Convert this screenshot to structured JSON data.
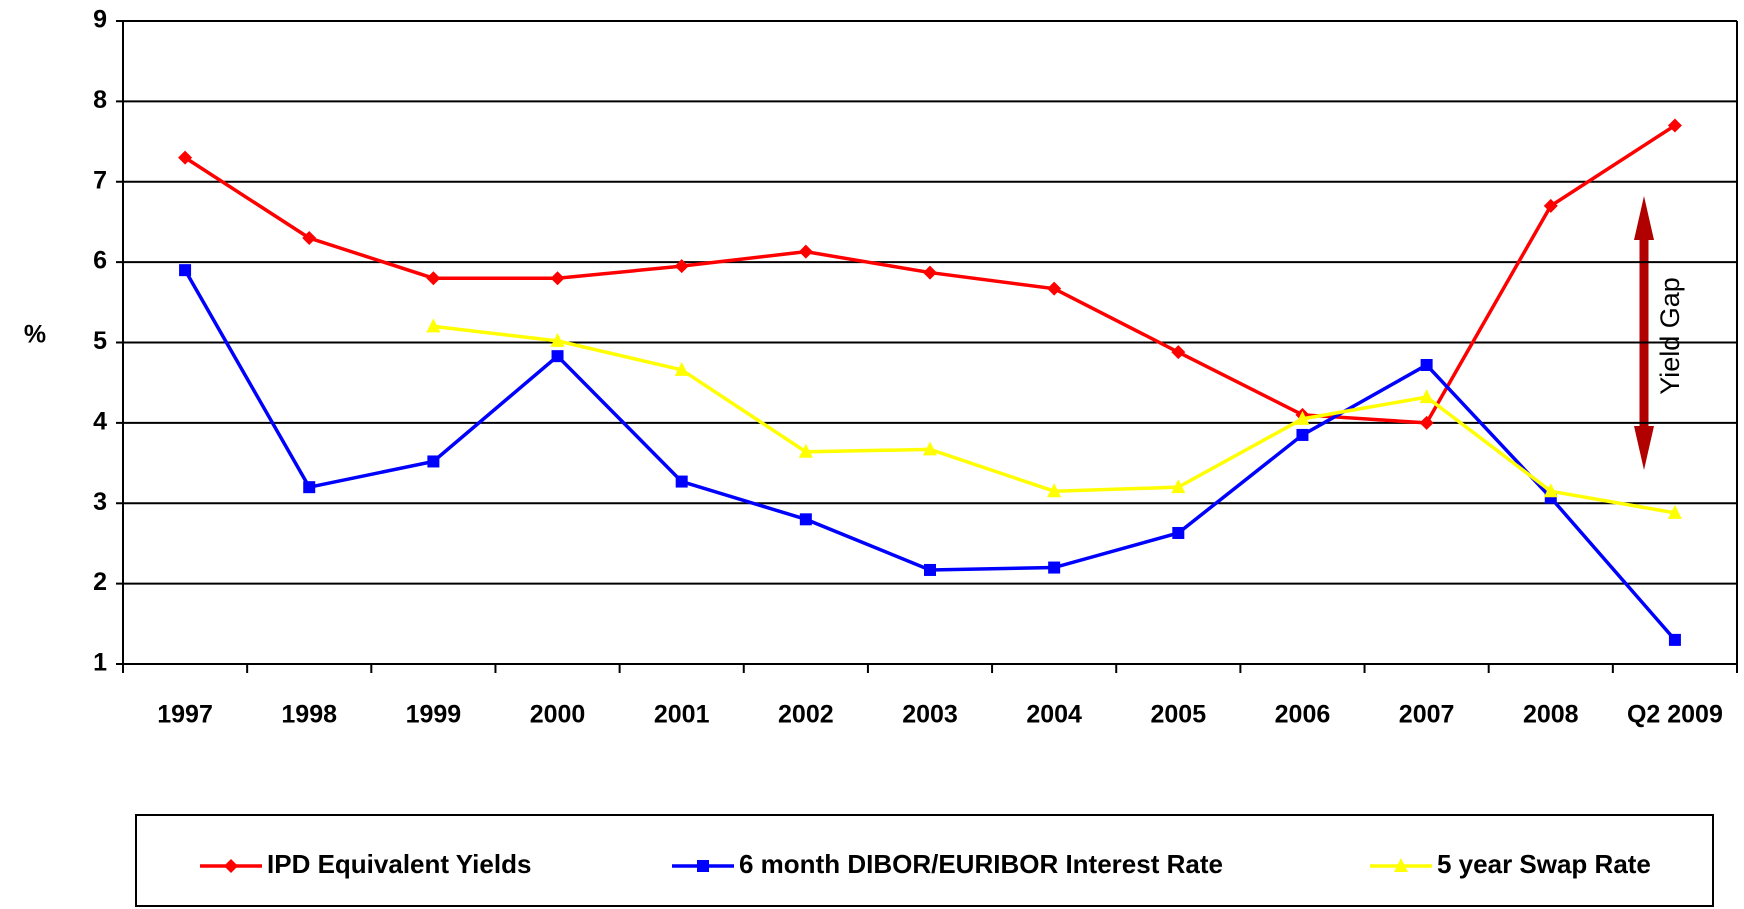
{
  "chart_data": {
    "type": "line",
    "y_label": "%",
    "annotation": "Yield Gap",
    "categories": [
      "1997",
      "1998",
      "1999",
      "2000",
      "2001",
      "2002",
      "2003",
      "2004",
      "2005",
      "2006",
      "2007",
      "2008",
      "Q2 2009"
    ],
    "series": [
      {
        "name": "IPD Equivalent Yields",
        "color": "#ff0000",
        "marker": "diamond",
        "values": [
          7.3,
          6.3,
          5.8,
          5.8,
          5.95,
          6.13,
          5.87,
          5.67,
          4.88,
          4.1,
          4.0,
          6.7,
          7.7
        ]
      },
      {
        "name": "6 month DIBOR/EURIBOR Interest Rate",
        "color": "#0000ff",
        "marker": "square",
        "values": [
          5.9,
          3.2,
          3.52,
          4.83,
          3.27,
          2.8,
          2.17,
          2.2,
          2.63,
          3.85,
          4.72,
          3.07,
          1.3
        ]
      },
      {
        "name": "5 year Swap Rate",
        "color": "#ffff00",
        "marker": "triangle",
        "values": [
          null,
          null,
          5.2,
          5.02,
          4.66,
          3.64,
          3.67,
          3.15,
          3.2,
          4.05,
          4.32,
          3.15,
          2.88
        ]
      }
    ],
    "ylim": [
      1,
      9
    ],
    "yticks": [
      1,
      2,
      3,
      4,
      5,
      6,
      7,
      8,
      9
    ],
    "grid": true,
    "legend": "bottom"
  }
}
